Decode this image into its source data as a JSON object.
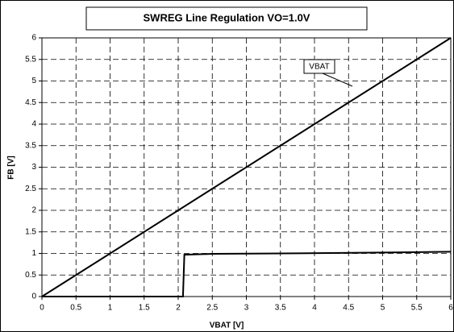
{
  "chart_data": {
    "type": "line",
    "title": "SWREG Line Regulation VO=1.0V",
    "x_label": "VBAT [V]",
    "y_label": "FB [V]",
    "series": [
      {
        "name": "VBAT",
        "color": "#000000",
        "x": [
          0,
          6
        ],
        "values": [
          0,
          6
        ]
      },
      {
        "color": "#000000",
        "x": [
          0,
          2.07,
          2.09,
          2.5,
          3.5,
          5,
          6
        ],
        "values": [
          0,
          0,
          0.97,
          0.99,
          1.0,
          1.02,
          1.04
        ]
      }
    ],
    "xlim": [
      0,
      6
    ],
    "ylim": [
      0,
      6
    ],
    "xticks": [
      0,
      0.5,
      1,
      1.5,
      2,
      2.5,
      3,
      3.5,
      4,
      4.5,
      5,
      5.5,
      6
    ],
    "yticks": [
      0,
      0.5,
      1,
      1.5,
      2,
      2.5,
      3,
      3.5,
      4,
      4.5,
      5,
      5.5,
      6
    ],
    "grid": true
  }
}
